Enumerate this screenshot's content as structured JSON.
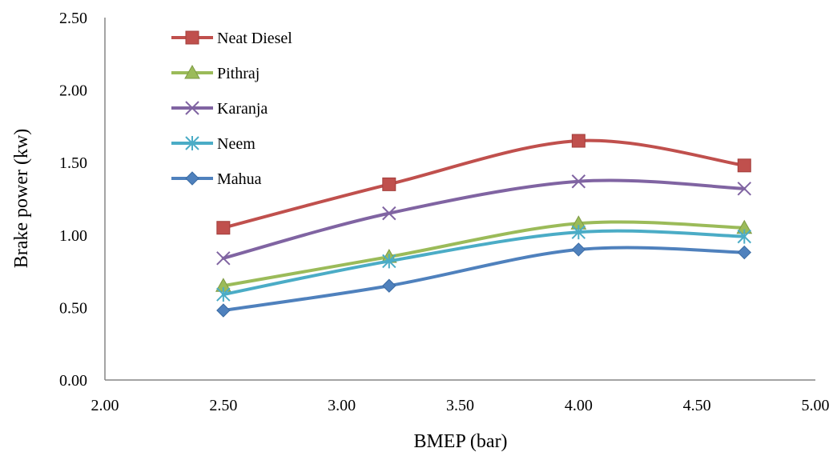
{
  "chart_data": {
    "type": "line",
    "title": "",
    "xlabel": "BMEP (bar)",
    "ylabel": "Brake power (kw)",
    "xlim": [
      2.0,
      5.0
    ],
    "ylim": [
      0.0,
      2.5
    ],
    "x_ticks": [
      "2.00",
      "2.50",
      "3.00",
      "3.50",
      "4.00",
      "4.50",
      "5.00"
    ],
    "y_ticks": [
      "0.00",
      "0.50",
      "1.00",
      "1.50",
      "2.00",
      "2.50"
    ],
    "grid": false,
    "smooth": true,
    "legend_position": "top-left",
    "x": [
      2.5,
      3.2,
      4.0,
      4.7
    ],
    "series": [
      {
        "name": "Neat Diesel",
        "values": [
          1.05,
          1.35,
          1.65,
          1.48
        ],
        "color": "#c0504d",
        "marker": "square"
      },
      {
        "name": "Pithraj",
        "values": [
          0.65,
          0.85,
          1.08,
          1.05
        ],
        "color": "#9bbb59",
        "marker": "triangle"
      },
      {
        "name": "Karanja",
        "values": [
          0.84,
          1.15,
          1.37,
          1.32
        ],
        "color": "#8064a2",
        "marker": "x"
      },
      {
        "name": "Neem",
        "values": [
          0.59,
          0.82,
          1.02,
          0.99
        ],
        "color": "#4bacc6",
        "marker": "asterisk"
      },
      {
        "name": "Mahua",
        "values": [
          0.48,
          0.65,
          0.9,
          0.88
        ],
        "color": "#4f81bd",
        "marker": "diamond"
      }
    ]
  }
}
